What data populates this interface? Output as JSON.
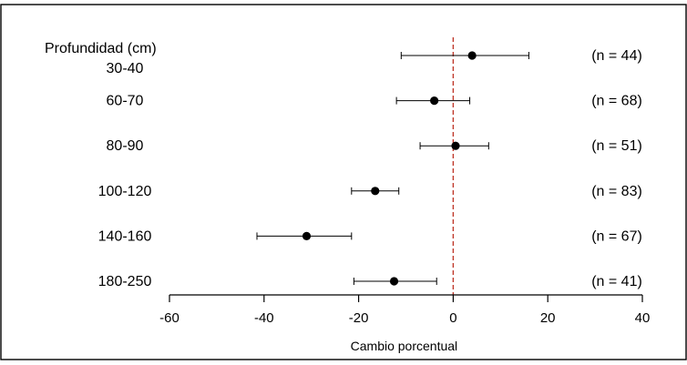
{
  "chart_data": {
    "type": "forest",
    "title": "",
    "xlabel": "Cambio porcentual",
    "ylabel": "",
    "category_header": "Profundidad (cm)",
    "xlim": [
      -60,
      40
    ],
    "xticks": [
      -60,
      -40,
      -20,
      0,
      20,
      40
    ],
    "xtick_labels": [
      "-60",
      "-40",
      "-20",
      "0",
      "20",
      "40"
    ],
    "reference_line": 0,
    "reference_line_color": "#c0392b",
    "point_color": "#000000",
    "grid": false,
    "rows": [
      {
        "label": "30-40",
        "estimate": 4,
        "lower": -11,
        "upper": 16,
        "n_label": "(n = 44)"
      },
      {
        "label": "60-70",
        "estimate": -4,
        "lower": -12,
        "upper": 3.5,
        "n_label": "(n = 68)"
      },
      {
        "label": "80-90",
        "estimate": 0.5,
        "lower": -7,
        "upper": 7.5,
        "n_label": "(n = 51)"
      },
      {
        "label": "100-120",
        "estimate": -16.5,
        "lower": -21.5,
        "upper": -11.5,
        "n_label": "(n = 83)"
      },
      {
        "label": "140-160",
        "estimate": -31,
        "lower": -41.5,
        "upper": -21.5,
        "n_label": "(n = 67)"
      },
      {
        "label": "180-250",
        "estimate": -12.5,
        "lower": -21,
        "upper": -3.5,
        "n_label": "(n = 41)"
      }
    ]
  }
}
